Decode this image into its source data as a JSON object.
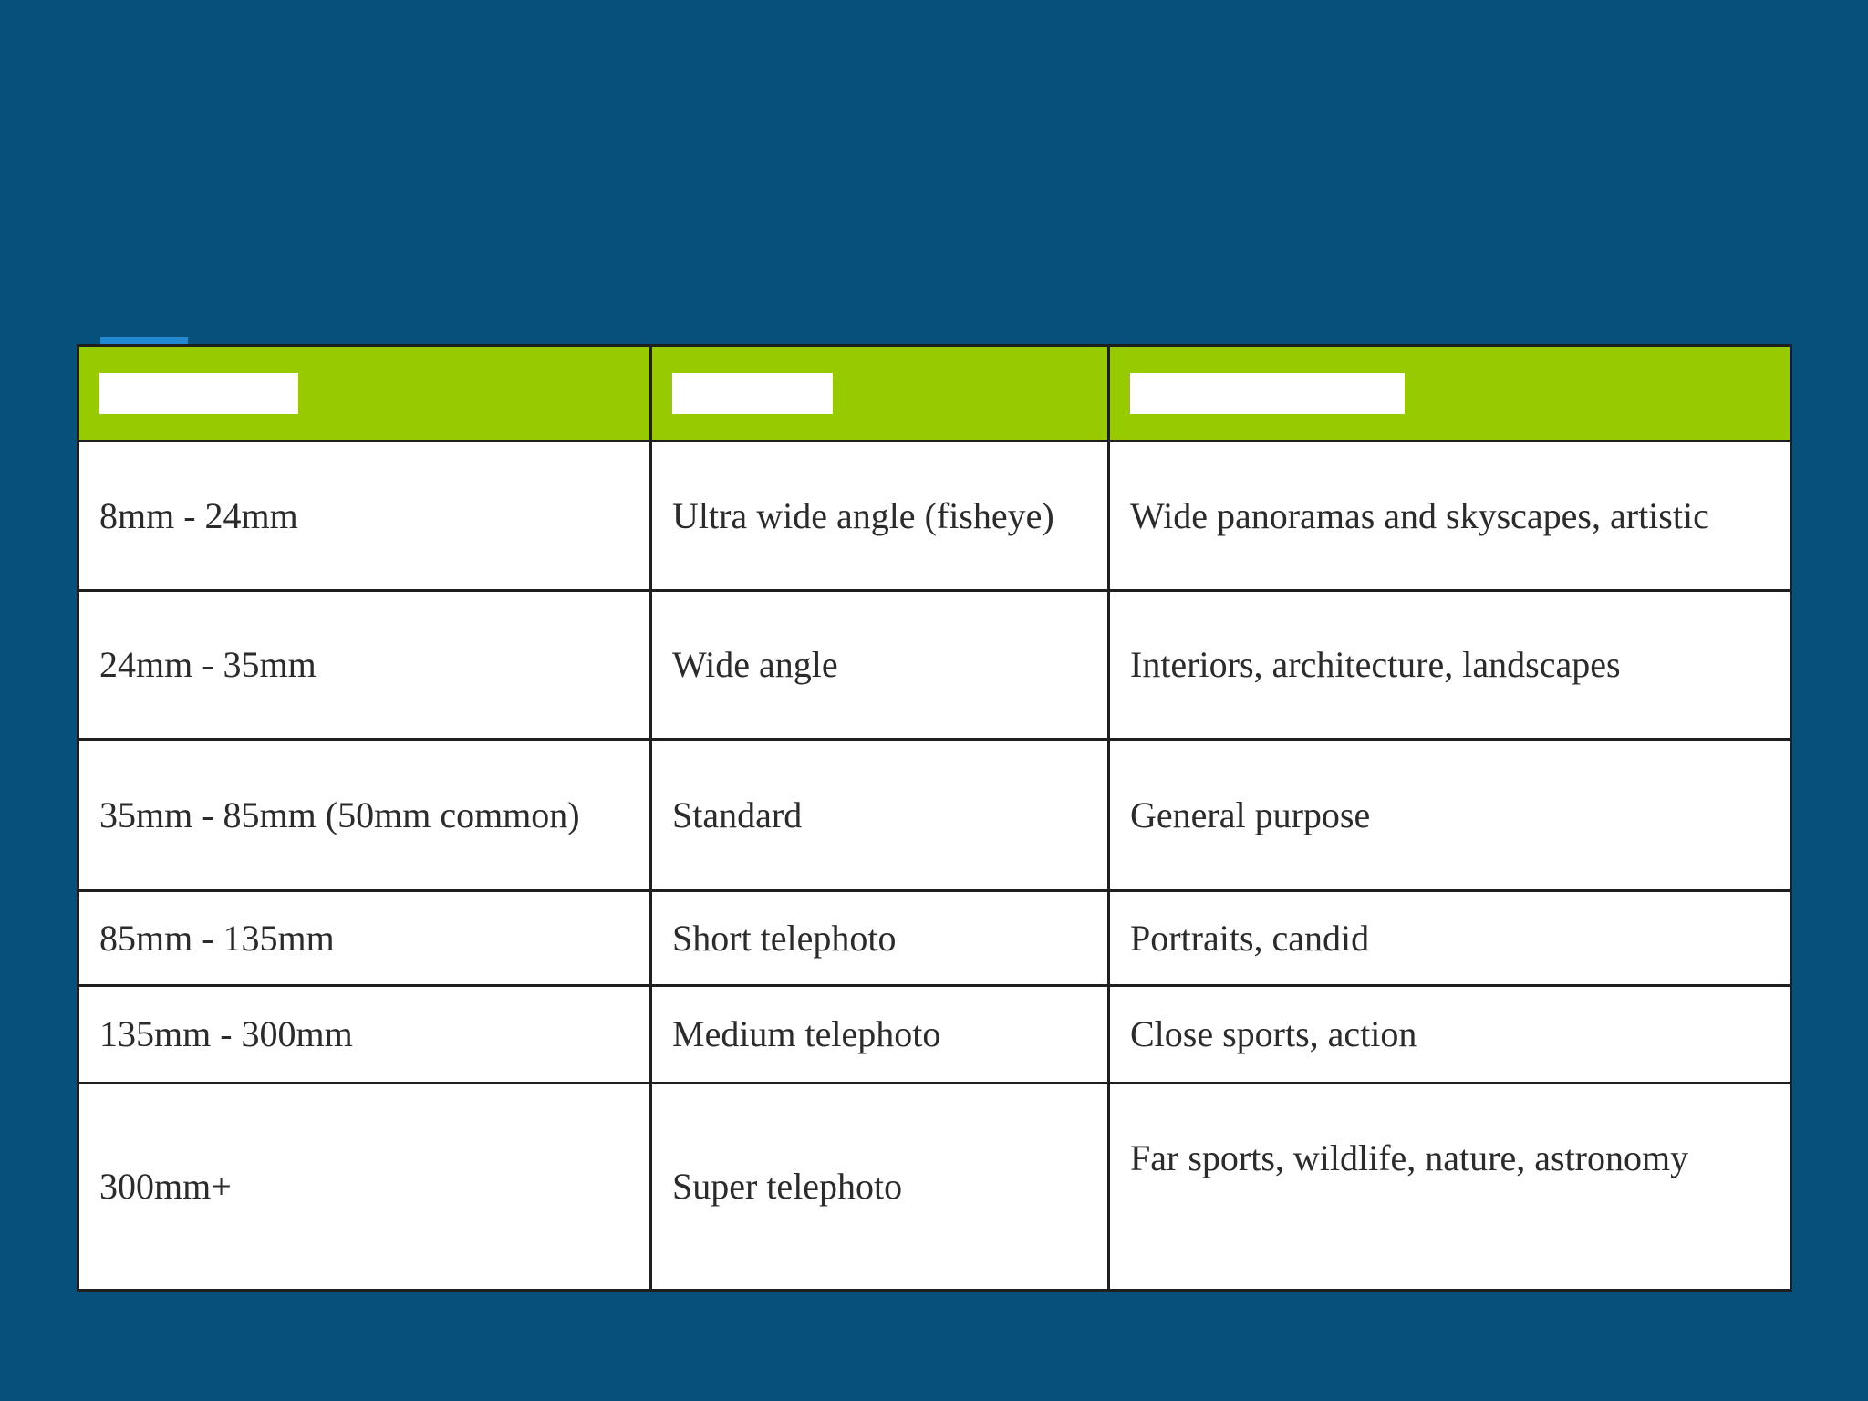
{
  "page": {
    "background_color": "#05517C"
  },
  "accent": {
    "dash_color": "#2189D1"
  },
  "table": {
    "style": {
      "header_background": "#97CB00",
      "body_background": "#FFFFFF",
      "border_color": "#1F1F1F",
      "text_color": "#2B2B2B",
      "header_placeholder_color": "#FFFFFF"
    },
    "header": {
      "cells": [
        {
          "redacted": true
        },
        {
          "redacted": true
        },
        {
          "redacted": true
        }
      ]
    },
    "rows": [
      {
        "focal_range": "8mm - 24mm",
        "lens_type": "Ultra wide angle (fisheye)",
        "best_use": "Wide panoramas and skyscapes, artistic"
      },
      {
        "focal_range": "24mm - 35mm",
        "lens_type": "Wide angle",
        "best_use": "Interiors, architecture, landscapes"
      },
      {
        "focal_range": "35mm - 85mm (50mm common)",
        "lens_type": "Standard",
        "best_use": "General purpose"
      },
      {
        "focal_range": "85mm - 135mm",
        "lens_type": "Short telephoto",
        "best_use": "Portraits, candid"
      },
      {
        "focal_range": "135mm - 300mm",
        "lens_type": "Medium telephoto",
        "best_use": "Close sports, action"
      },
      {
        "focal_range": "300mm+",
        "lens_type": "Super telephoto",
        "best_use": "Far sports, wildlife, nature, astronomy"
      }
    ]
  }
}
